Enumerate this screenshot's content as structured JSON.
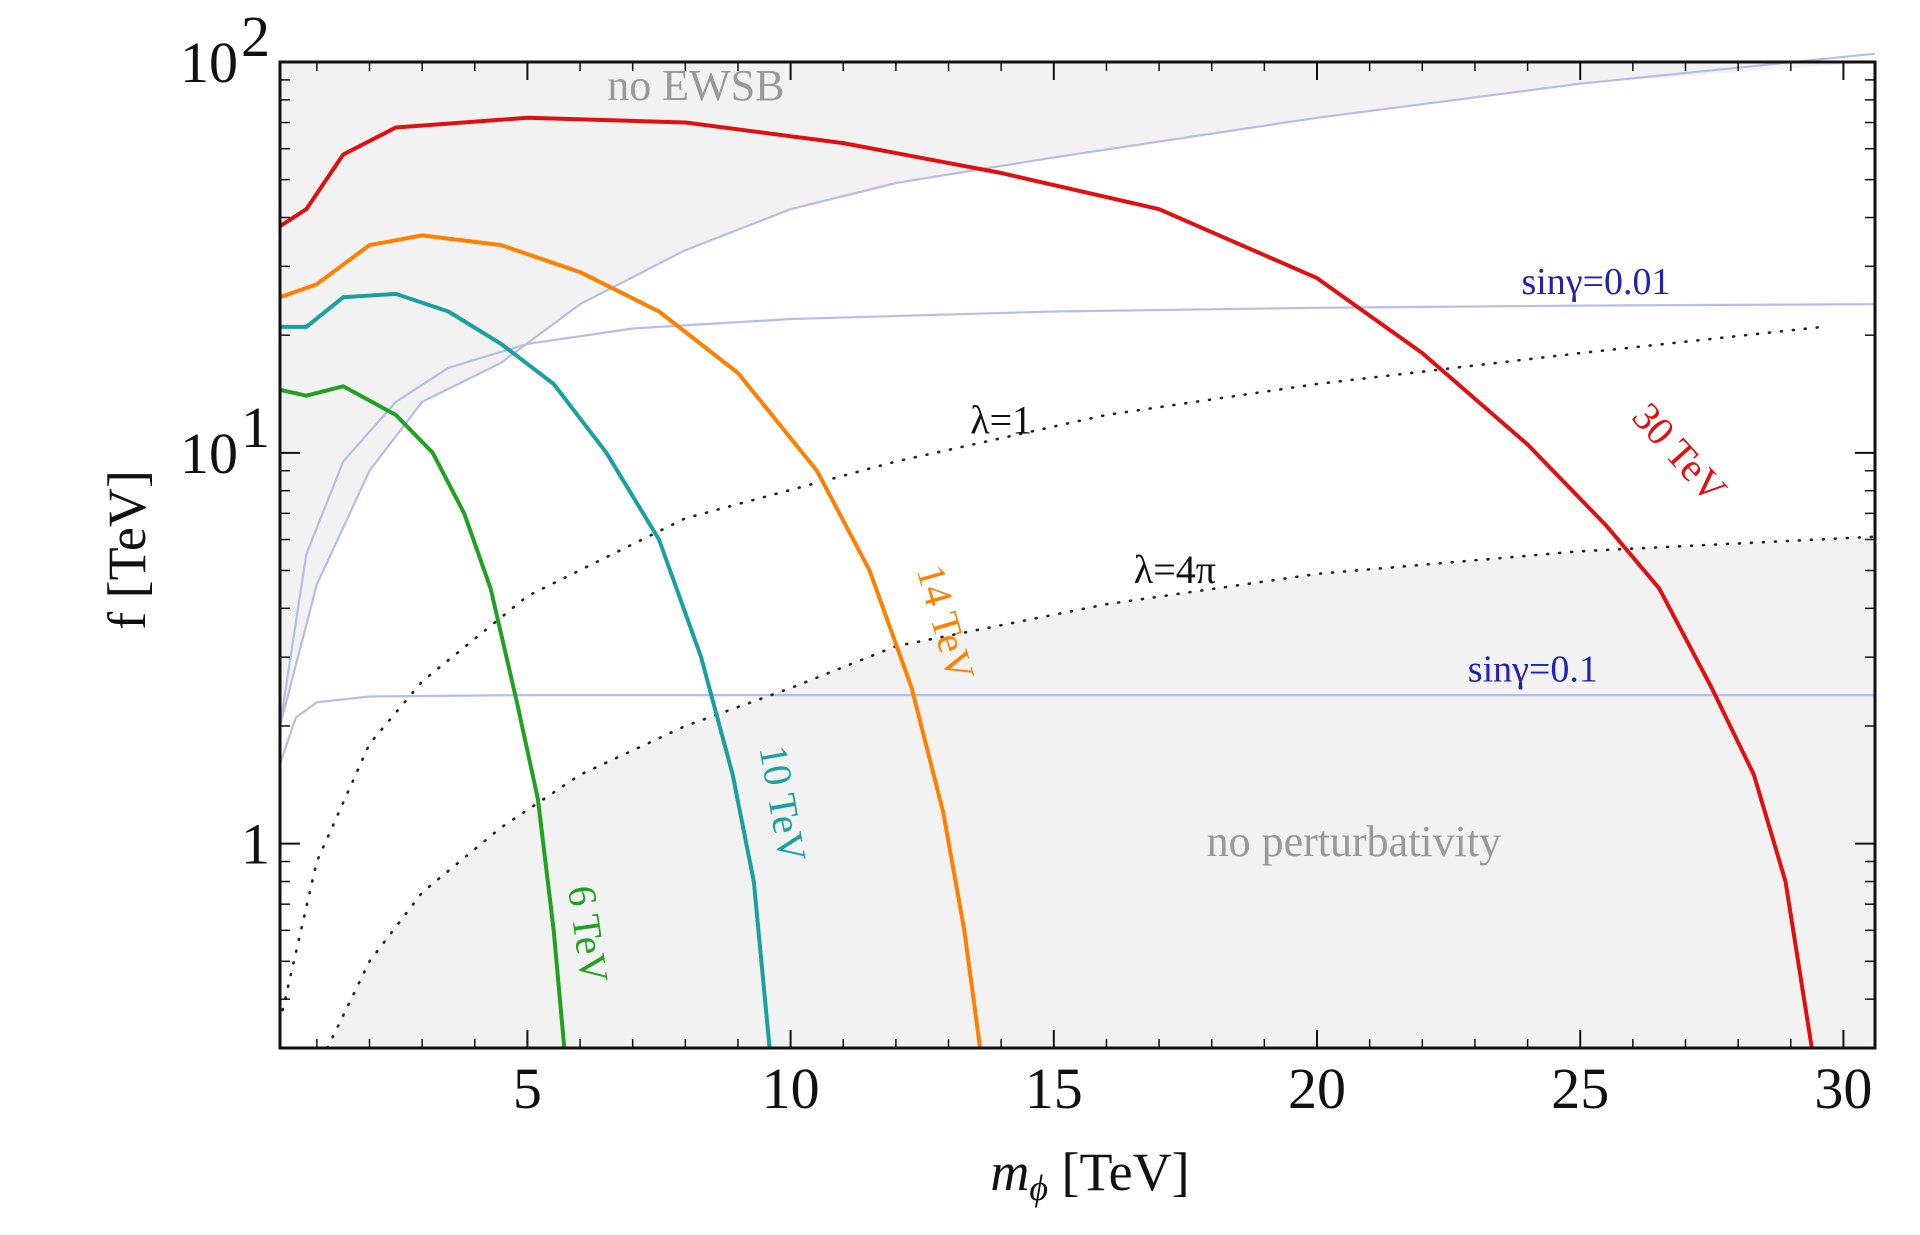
{
  "chart_data": {
    "type": "line",
    "xlabel_main": "m",
    "xlabel_sub": "ϕ",
    "xlabel_unit": " [TeV]",
    "ylabel": "f [TeV]",
    "xlim": [
      0.3,
      30.6
    ],
    "ylim": [
      0.3,
      100
    ],
    "yscale": "log",
    "x_ticks": [
      {
        "value": 5,
        "label": "5"
      },
      {
        "value": 10,
        "label": "10"
      },
      {
        "value": 15,
        "label": "15"
      },
      {
        "value": 20,
        "label": "20"
      },
      {
        "value": 25,
        "label": "25"
      },
      {
        "value": 30,
        "label": "30"
      }
    ],
    "y_ticks": [
      {
        "value": 1,
        "base": "1",
        "exp": ""
      },
      {
        "value": 10,
        "base": "10",
        "exp": "1"
      },
      {
        "value": 100,
        "base": "10",
        "exp": "2"
      }
    ],
    "regions": [
      {
        "name": "no-ewsb-region",
        "label": "no EWSB",
        "label_at": [
          8.2,
          80
        ]
      },
      {
        "name": "no-perturbativity-region",
        "label": "no perturbativity",
        "label_at": [
          20.7,
          0.93
        ]
      }
    ],
    "series": [
      {
        "name": "6 TeV",
        "color": "#22a022",
        "points": [
          [
            0.3,
            14.5
          ],
          [
            0.8,
            14
          ],
          [
            1.5,
            14.8
          ],
          [
            2.5,
            12.5
          ],
          [
            3.2,
            10
          ],
          [
            3.8,
            7
          ],
          [
            4.3,
            4.5
          ],
          [
            4.8,
            2.3
          ],
          [
            5.2,
            1.3
          ],
          [
            5.5,
            0.6
          ],
          [
            5.7,
            0.3
          ]
        ]
      },
      {
        "name": "10 TeV",
        "color": "#1aa0a0",
        "points": [
          [
            0.3,
            21
          ],
          [
            0.8,
            21
          ],
          [
            1.5,
            25
          ],
          [
            2.5,
            25.5
          ],
          [
            3.5,
            23
          ],
          [
            4.5,
            19
          ],
          [
            5.5,
            15
          ],
          [
            6.5,
            10
          ],
          [
            7.5,
            6
          ],
          [
            8.3,
            3
          ],
          [
            8.9,
            1.5
          ],
          [
            9.3,
            0.8
          ],
          [
            9.6,
            0.3
          ]
        ]
      },
      {
        "name": "14 TeV",
        "color": "#ff8000",
        "points": [
          [
            0.3,
            25
          ],
          [
            1,
            27
          ],
          [
            2,
            34
          ],
          [
            3,
            36
          ],
          [
            4.5,
            34
          ],
          [
            6,
            29
          ],
          [
            7.5,
            23
          ],
          [
            9,
            16
          ],
          [
            10.5,
            9
          ],
          [
            11.5,
            5
          ],
          [
            12.3,
            2.5
          ],
          [
            12.9,
            1.2
          ],
          [
            13.3,
            0.6
          ],
          [
            13.6,
            0.3
          ]
        ]
      },
      {
        "name": "30 TeV",
        "color": "#e01010",
        "points": [
          [
            0.3,
            38
          ],
          [
            0.8,
            42
          ],
          [
            1.5,
            58
          ],
          [
            2.5,
            68
          ],
          [
            5,
            72
          ],
          [
            8,
            70
          ],
          [
            11,
            62
          ],
          [
            14,
            52
          ],
          [
            17,
            42
          ],
          [
            20,
            28
          ],
          [
            22,
            18
          ],
          [
            24,
            10.5
          ],
          [
            25.5,
            6.5
          ],
          [
            26.5,
            4.5
          ],
          [
            27.5,
            2.5
          ],
          [
            28.3,
            1.5
          ],
          [
            28.9,
            0.8
          ],
          [
            29.4,
            0.3
          ]
        ]
      }
    ],
    "reference_lines": [
      {
        "name": "sinγ=0.01",
        "color": "#b8bde8",
        "points": [
          [
            0.3,
            2
          ],
          [
            0.8,
            5.5
          ],
          [
            1.5,
            9.5
          ],
          [
            2.5,
            13.5
          ],
          [
            3.5,
            16.5
          ],
          [
            5,
            19
          ],
          [
            7,
            20.8
          ],
          [
            10,
            22
          ],
          [
            15,
            23
          ],
          [
            20,
            23.5
          ],
          [
            25,
            23.8
          ],
          [
            30.6,
            24
          ]
        ]
      },
      {
        "name": "sinγ=0.1",
        "color": "#b8bde8",
        "points": [
          [
            0.3,
            1.6
          ],
          [
            0.6,
            2.1
          ],
          [
            1,
            2.3
          ],
          [
            2,
            2.38
          ],
          [
            5,
            2.4
          ],
          [
            30.6,
            2.4
          ]
        ]
      },
      {
        "name": "boundary",
        "color": "#b8bde8",
        "points": [
          [
            0.3,
            2
          ],
          [
            1,
            4.6
          ],
          [
            2,
            9
          ],
          [
            3,
            13.5
          ],
          [
            4.5,
            17
          ],
          [
            6,
            24
          ],
          [
            8,
            33
          ],
          [
            10,
            42
          ],
          [
            12,
            49
          ],
          [
            15,
            57
          ],
          [
            20,
            72
          ],
          [
            25,
            88
          ],
          [
            30.6,
            105
          ]
        ]
      }
    ],
    "dotted_lines": [
      {
        "name": "λ=1",
        "points": [
          [
            0.3,
            0.35
          ],
          [
            1,
            0.9
          ],
          [
            2,
            1.8
          ],
          [
            3,
            2.6
          ],
          [
            5,
            4.3
          ],
          [
            8,
            6.8
          ],
          [
            12,
            9.5
          ],
          [
            16,
            12.5
          ],
          [
            20,
            15
          ],
          [
            25,
            18
          ],
          [
            29.6,
            21
          ]
        ]
      },
      {
        "name": "λ=4π",
        "points": [
          [
            1.2,
            0.3
          ],
          [
            2,
            0.5
          ],
          [
            3,
            0.75
          ],
          [
            4.5,
            1.1
          ],
          [
            6,
            1.5
          ],
          [
            8,
            2
          ],
          [
            10,
            2.5
          ],
          [
            12,
            3.2
          ],
          [
            16,
            4.1
          ],
          [
            20,
            4.9
          ],
          [
            25,
            5.6
          ],
          [
            30.6,
            6.1
          ]
        ]
      }
    ],
    "annotations": [
      {
        "text": "6 TeV",
        "color": "#22a022",
        "at": [
          5.9,
          0.58
        ],
        "rotate": 82
      },
      {
        "text": "10 TeV",
        "color": "#1aa0a0",
        "at": [
          9.6,
          1.25
        ],
        "rotate": 80
      },
      {
        "text": "14 TeV",
        "color": "#ff8000",
        "at": [
          12.7,
          3.6
        ],
        "rotate": 74
      },
      {
        "text": "30 TeV",
        "color": "#e01010",
        "at": [
          26.7,
          9.5
        ],
        "rotate": 48
      },
      {
        "text": "sinγ=0.01",
        "color": "#2222aa",
        "at": [
          25.3,
          25.5
        ],
        "rotate": 0
      },
      {
        "text": "sinγ=0.1",
        "color": "#2222aa",
        "at": [
          24.1,
          2.6
        ],
        "rotate": 0
      },
      {
        "text": "λ=1",
        "color": "#111111",
        "at": [
          14.0,
          11.2
        ],
        "rotate": 0
      },
      {
        "text": "λ=4π",
        "color": "#111111",
        "at": [
          17.3,
          4.65
        ],
        "rotate": 0
      }
    ]
  }
}
